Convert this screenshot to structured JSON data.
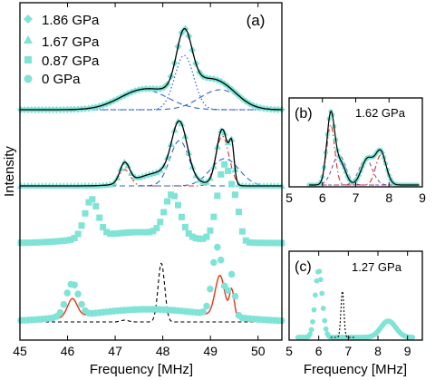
{
  "colors": {
    "data": "#7fe3d6",
    "fit_total": "#000000",
    "blue_dashed": "#2f63d8",
    "red_dashdot": "#e0301e",
    "purple_dashed": "#7a3fb0",
    "red_solid": "#e8321c",
    "black_dashed": "#000000"
  },
  "chart_data": [
    {
      "panel": "(a)",
      "panel_label": "(a)",
      "type": "line",
      "xlabel": "Frequency [MHz]",
      "ylabel": "Intensity",
      "xlim": [
        45,
        50.5
      ],
      "xticks": [
        "45",
        "46",
        "47",
        "48",
        "49",
        "50"
      ],
      "legend": {
        "placement": "top-left",
        "entries": [
          {
            "label": "1.86 GPa",
            "marker": "diamond"
          },
          {
            "label": "1.67 GPa",
            "marker": "triangle"
          },
          {
            "label": "0.87 GPa",
            "marker": "square"
          },
          {
            "label": "0 GPa",
            "marker": "circle"
          }
        ]
      },
      "series": [
        {
          "pressure": "1.86 GPa",
          "marker": "diamond",
          "offset": 3,
          "data_peaks": [
            [
              47.6,
              0.22,
              0.5
            ],
            [
              48.45,
              0.62,
              0.16
            ],
            [
              48.6,
              0.2,
              0.4
            ],
            [
              49.2,
              0.25,
              0.38
            ]
          ],
          "components": [
            {
              "style": "blue_dashed",
              "peaks": [
                [
                  47.6,
                  0.22,
                  0.5
                ]
              ]
            },
            {
              "style": "blue_dotted",
              "peaks": [
                [
                  48.45,
                  0.6,
                  0.2
                ]
              ]
            },
            {
              "style": "blue_dashed",
              "peaks": [
                [
                  49.2,
                  0.22,
                  0.42
                ]
              ]
            }
          ]
        },
        {
          "pressure": "1.67 GPa",
          "marker": "triangle",
          "offset": 2,
          "data_peaks": [
            [
              47.2,
              0.22,
              0.1
            ],
            [
              48.35,
              0.6,
              0.16
            ],
            [
              49.25,
              0.62,
              0.12
            ],
            [
              49.45,
              0.35,
              0.05
            ],
            [
              48.0,
              0.15,
              0.5
            ]
          ],
          "components": [
            {
              "style": "red_dashdot",
              "peaks": [
                [
                  47.2,
                  0.18,
                  0.12
                ],
                [
                  49.25,
                  0.55,
                  0.14
                ]
              ]
            },
            {
              "style": "blue_dashed",
              "peaks": [
                [
                  48.35,
                  0.5,
                  0.2
                ]
              ]
            },
            {
              "style": "blue_dashed",
              "peaks": [
                [
                  49.3,
                  0.3,
                  0.3
                ]
              ]
            }
          ]
        },
        {
          "pressure": "0.87 GPa",
          "marker": "square",
          "offset": 1,
          "data_peaks": [
            [
              46.5,
              0.42,
              0.14
            ],
            [
              48.2,
              0.45,
              0.16
            ],
            [
              49.3,
              0.85,
              0.15
            ],
            [
              49.55,
              0.25,
              0.08
            ],
            [
              47.5,
              0.12,
              0.9
            ]
          ]
        },
        {
          "pressure": "0 GPa",
          "marker": "circle",
          "offset": 0,
          "data_peaks": [
            [
              46.1,
              0.36,
              0.13
            ],
            [
              49.15,
              0.75,
              0.11
            ],
            [
              49.45,
              0.45,
              0.06
            ],
            [
              47.7,
              0.14,
              1.3
            ]
          ],
          "components": [
            {
              "style": "red_solid",
              "peaks": [
                [
                  46.1,
                  0.2,
                  0.1
                ],
                [
                  49.2,
                  0.45,
                  0.1
                ],
                [
                  49.45,
                  0.3,
                  0.05
                ],
                [
                  47.7,
                  0.14,
                  1.2
                ]
              ]
            },
            {
              "style": "black_dashed",
              "peaks": [
                [
                  47.97,
                  0.65,
                  0.07
                ],
                [
                  47.2,
                  0.02,
                  0.08
                ]
              ]
            }
          ]
        }
      ]
    },
    {
      "panel": "(b)",
      "panel_label": "(b)",
      "annotation": "1.62 GPa",
      "type": "line",
      "xlim": [
        5,
        9
      ],
      "xticks": [
        "5",
        "6",
        "7",
        "8",
        "9"
      ],
      "data_peaks": [
        [
          6.25,
          0.82,
          0.12
        ],
        [
          6.55,
          0.25,
          0.15
        ],
        [
          7.35,
          0.3,
          0.18
        ],
        [
          7.75,
          0.38,
          0.16
        ]
      ],
      "components": [
        {
          "style": "red_dashdot",
          "peaks": [
            [
              6.25,
              0.7,
              0.12
            ],
            [
              7.75,
              0.35,
              0.15
            ]
          ]
        },
        {
          "style": "purple_dashed",
          "peaks": [
            [
              6.5,
              0.35,
              0.2
            ],
            [
              7.3,
              0.3,
              0.2
            ]
          ]
        }
      ]
    },
    {
      "panel": "(c)",
      "panel_label": "(c)",
      "annotation": "1.27 GPa",
      "type": "line",
      "xlim": [
        5,
        9.5
      ],
      "xticks": [
        "5",
        "6",
        "7",
        "8",
        "9"
      ],
      "xlabel": "Frequency [MHz]",
      "data_peaks": [
        [
          6.0,
          0.9,
          0.12
        ],
        [
          8.35,
          0.22,
          0.25
        ]
      ],
      "components": [
        {
          "style": "black_dashed",
          "peaks": [
            [
              6.8,
              0.62,
              0.05
            ]
          ]
        }
      ]
    }
  ]
}
